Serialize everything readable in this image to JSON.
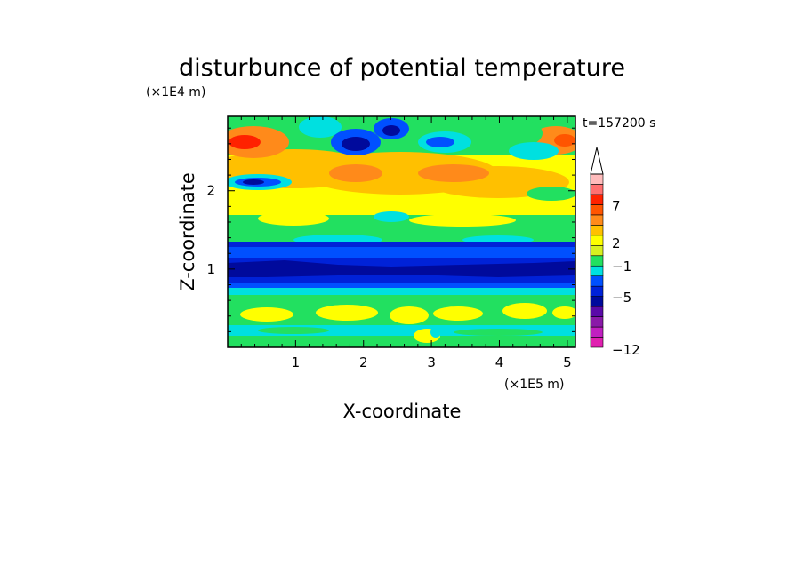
{
  "chart_data": {
    "type": "heatmap",
    "title": "disturbunce of potential temperature",
    "time_label": "t=157200 s",
    "xlabel": "X-coordinate",
    "ylabel": "Z-coordinate",
    "x_unit": "(×1E5 m)",
    "y_unit": "(×1E4 m)",
    "xlim": [
      0,
      5.12
    ],
    "ylim": [
      0,
      2.95
    ],
    "x_ticks": [
      1,
      2,
      3,
      4,
      5
    ],
    "y_ticks": [
      1,
      2
    ],
    "grid": false,
    "legend": "right colorbar",
    "colorbar": {
      "labels": [
        {
          "value": 7,
          "text": "7"
        },
        {
          "value": 2,
          "text": "2"
        },
        {
          "value": -1,
          "text": "−1"
        },
        {
          "value": -5,
          "text": "−5"
        },
        {
          "value": -12,
          "text": "−12"
        }
      ],
      "colors": [
        "#e020b0",
        "#c020c0",
        "#8a1aa8",
        "#5a0aa8",
        "#000a9c",
        "#0022d8",
        "#0050ff",
        "#00e0e0",
        "#22e060",
        "#d8f020",
        "#ffff00",
        "#ffc000",
        "#ff8a1a",
        "#ff5500",
        "#ff2200",
        "#ff7070",
        "#ffbcbc"
      ]
    }
  }
}
